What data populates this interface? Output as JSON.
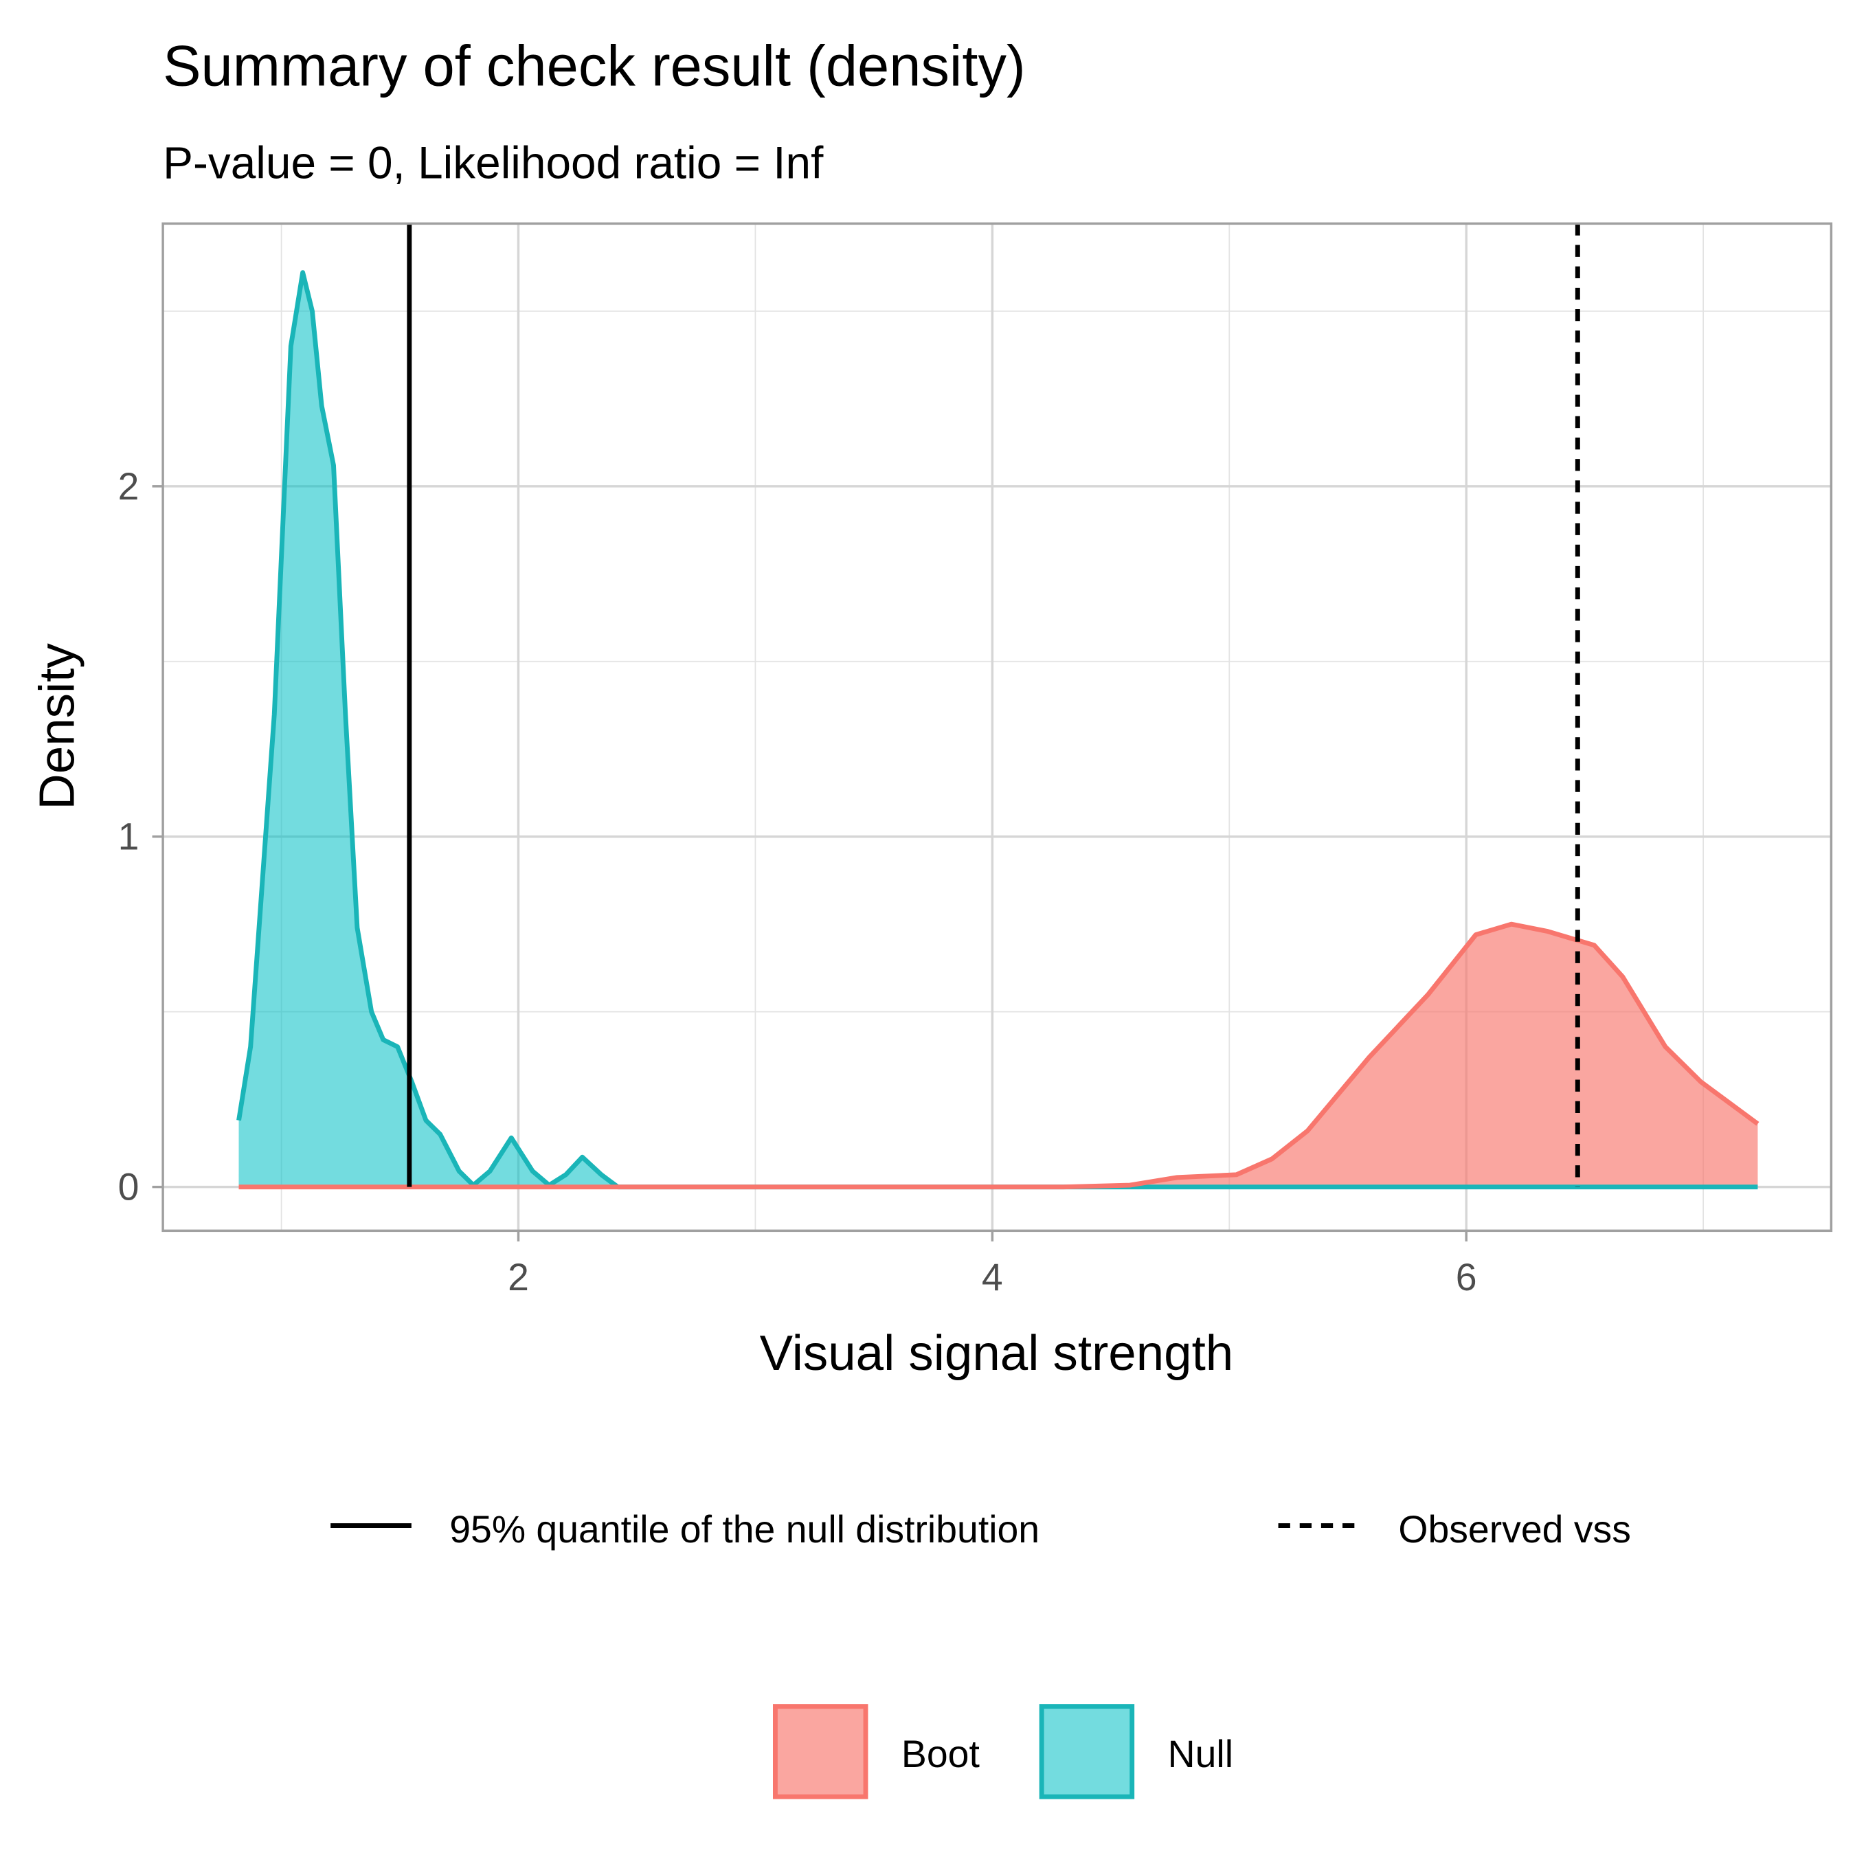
{
  "chart_data": {
    "type": "area",
    "title": "Summary of check result (density)",
    "subtitle": "P-value = 0, Likelihood ratio = Inf",
    "xlabel": "Visual signal strength",
    "ylabel": "Density",
    "xlim": [
      0.5,
      7.54
    ],
    "ylim": [
      -0.125,
      2.75
    ],
    "x_ticks": [
      2,
      4,
      6
    ],
    "x_tick_labels": [
      "2",
      "4",
      "6"
    ],
    "y_ticks": [
      0,
      1,
      2
    ],
    "y_tick_labels": [
      "0",
      "1",
      "2"
    ],
    "grid": true,
    "series": [
      {
        "name": "Boot",
        "color": "#F8766D",
        "x": [
          0.82,
          4.3,
          4.58,
          4.78,
          5.03,
          5.18,
          5.33,
          5.59,
          5.84,
          6.04,
          6.19,
          6.34,
          6.54,
          6.66,
          6.84,
          6.99,
          7.23
        ],
        "y": [
          0,
          0,
          0.005,
          0.027,
          0.035,
          0.08,
          0.16,
          0.37,
          0.55,
          0.72,
          0.75,
          0.73,
          0.69,
          0.6,
          0.4,
          0.3,
          0.18
        ]
      },
      {
        "name": "Null",
        "color": "#00BFC4",
        "x": [
          0.82,
          0.87,
          0.97,
          1.04,
          1.09,
          1.13,
          1.17,
          1.22,
          1.27,
          1.32,
          1.38,
          1.43,
          1.49,
          1.55,
          1.61,
          1.67,
          1.75,
          1.81,
          1.88,
          1.97,
          2.06,
          2.13,
          2.2,
          2.27,
          2.35,
          2.42,
          7.23
        ],
        "y": [
          0.19,
          0.4,
          1.35,
          2.4,
          2.61,
          2.5,
          2.23,
          2.06,
          1.35,
          0.74,
          0.5,
          0.42,
          0.4,
          0.3,
          0.19,
          0.15,
          0.045,
          0.005,
          0.045,
          0.14,
          0.045,
          0.005,
          0.035,
          0.085,
          0.035,
          0,
          0
        ]
      }
    ],
    "vlines": [
      {
        "name": "95% quantile of the null distribution",
        "x": 1.54,
        "linetype": "solid"
      },
      {
        "name": "Observed vss",
        "x": 6.47,
        "linetype": "dashed"
      }
    ],
    "legend_position": "bottom"
  }
}
